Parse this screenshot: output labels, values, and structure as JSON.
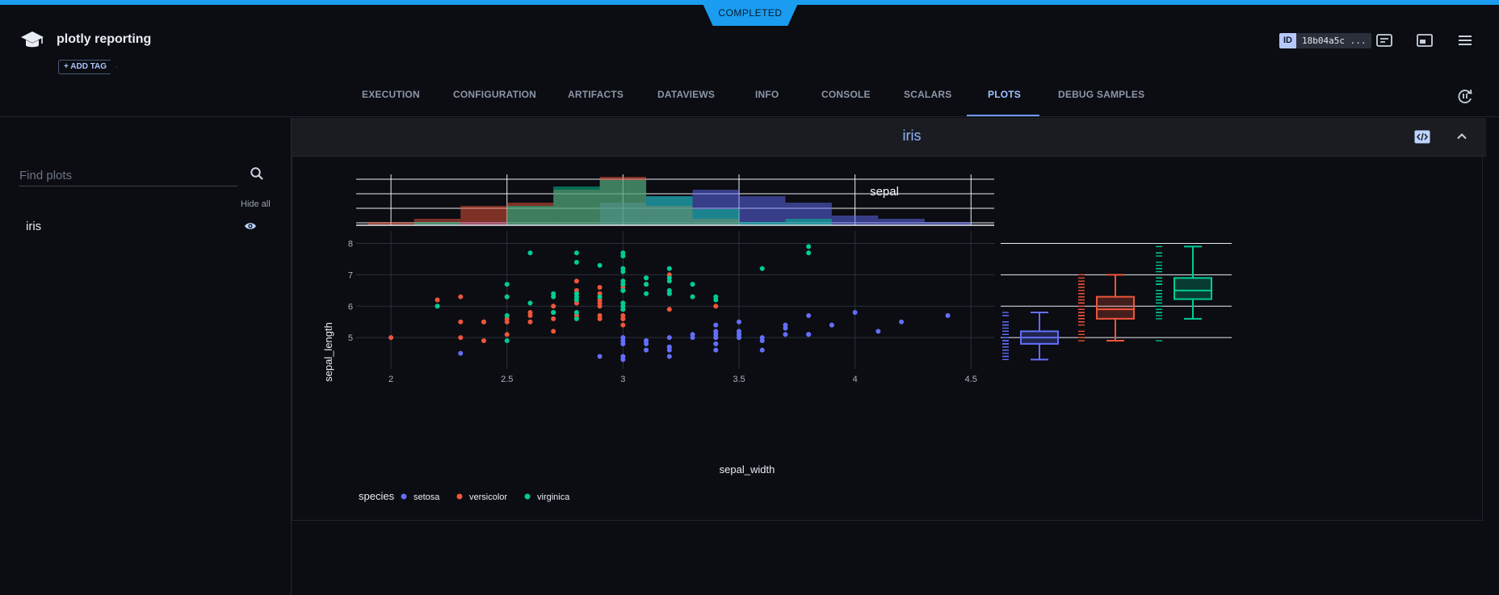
{
  "header": {
    "status": "COMPLETED",
    "task_name": "plotly reporting",
    "add_tag_label": "+ ADD TAG",
    "id_label": "ID",
    "id_value": "18b04a5c ..."
  },
  "tabs": [
    "EXECUTION",
    "CONFIGURATION",
    "ARTIFACTS",
    "DATAVIEWS",
    "INFO",
    "CONSOLE",
    "SCALARS",
    "PLOTS",
    "DEBUG SAMPLES"
  ],
  "active_tab": "PLOTS",
  "sidebar": {
    "search_placeholder": "Find plots",
    "hide_all_label": "Hide all",
    "plots": [
      {
        "label": "iris"
      }
    ]
  },
  "panel": {
    "title": "iris"
  },
  "colors": {
    "accent": "#1a9df0",
    "setosa": "#636efa",
    "versicolor": "#ef553b",
    "virginica": "#00cc96"
  },
  "chart_data": {
    "type": "scatter",
    "title": "sepal",
    "xlabel": "sepal_width",
    "ylabel": "sepal_length",
    "xlim": [
      1.85,
      4.6
    ],
    "ylim": [
      4.0,
      8.4
    ],
    "x_ticks": [
      2,
      2.5,
      3,
      3.5,
      4,
      4.5
    ],
    "y_ticks": [
      5,
      6,
      7,
      8
    ],
    "legend_title": "species",
    "legend_position": "bottom-left",
    "series": [
      {
        "name": "setosa",
        "color": "#636efa",
        "points": [
          [
            3.5,
            5.1
          ],
          [
            3.0,
            4.9
          ],
          [
            3.2,
            4.7
          ],
          [
            3.1,
            4.6
          ],
          [
            3.6,
            5.0
          ],
          [
            3.9,
            5.4
          ],
          [
            3.4,
            4.6
          ],
          [
            3.4,
            5.0
          ],
          [
            2.9,
            4.4
          ],
          [
            3.1,
            4.9
          ],
          [
            3.7,
            5.4
          ],
          [
            3.4,
            4.8
          ],
          [
            3.0,
            4.8
          ],
          [
            3.0,
            4.3
          ],
          [
            4.0,
            5.8
          ],
          [
            4.4,
            5.7
          ],
          [
            3.9,
            5.4
          ],
          [
            3.5,
            5.1
          ],
          [
            3.8,
            5.7
          ],
          [
            3.8,
            5.1
          ],
          [
            3.4,
            5.4
          ],
          [
            3.7,
            5.1
          ],
          [
            3.6,
            4.6
          ],
          [
            3.3,
            5.1
          ],
          [
            3.4,
            4.8
          ],
          [
            3.0,
            5.0
          ],
          [
            3.4,
            5.0
          ],
          [
            3.5,
            5.2
          ],
          [
            3.4,
            5.2
          ],
          [
            3.2,
            4.7
          ],
          [
            3.1,
            4.8
          ],
          [
            3.4,
            5.4
          ],
          [
            4.1,
            5.2
          ],
          [
            4.2,
            5.5
          ],
          [
            3.1,
            4.9
          ],
          [
            3.2,
            5.0
          ],
          [
            3.5,
            5.5
          ],
          [
            3.6,
            4.9
          ],
          [
            3.0,
            4.4
          ],
          [
            3.4,
            5.1
          ],
          [
            3.5,
            5.0
          ],
          [
            2.3,
            4.5
          ],
          [
            3.2,
            4.4
          ],
          [
            3.5,
            5.0
          ],
          [
            3.8,
            5.1
          ],
          [
            3.0,
            4.8
          ],
          [
            3.8,
            5.1
          ],
          [
            3.2,
            4.6
          ],
          [
            3.7,
            5.3
          ],
          [
            3.3,
            5.0
          ]
        ]
      },
      {
        "name": "versicolor",
        "color": "#ef553b",
        "points": [
          [
            3.2,
            7.0
          ],
          [
            3.2,
            6.4
          ],
          [
            3.1,
            6.9
          ],
          [
            2.3,
            5.5
          ],
          [
            2.8,
            6.5
          ],
          [
            2.8,
            5.7
          ],
          [
            3.3,
            6.3
          ],
          [
            2.4,
            4.9
          ],
          [
            2.9,
            6.6
          ],
          [
            2.7,
            5.2
          ],
          [
            2.0,
            5.0
          ],
          [
            3.0,
            5.9
          ],
          [
            2.2,
            6.0
          ],
          [
            2.9,
            6.1
          ],
          [
            2.9,
            5.6
          ],
          [
            3.1,
            6.7
          ],
          [
            3.0,
            5.6
          ],
          [
            2.7,
            5.8
          ],
          [
            2.2,
            6.2
          ],
          [
            2.5,
            5.6
          ],
          [
            3.2,
            5.9
          ],
          [
            2.8,
            6.1
          ],
          [
            2.5,
            6.3
          ],
          [
            2.8,
            6.1
          ],
          [
            2.9,
            6.4
          ],
          [
            3.0,
            6.6
          ],
          [
            2.8,
            6.8
          ],
          [
            3.0,
            6.7
          ],
          [
            2.9,
            6.0
          ],
          [
            2.6,
            5.7
          ],
          [
            2.4,
            5.5
          ],
          [
            2.4,
            5.5
          ],
          [
            2.7,
            5.8
          ],
          [
            2.7,
            6.0
          ],
          [
            3.0,
            5.4
          ],
          [
            3.4,
            6.0
          ],
          [
            3.1,
            6.7
          ],
          [
            2.3,
            6.3
          ],
          [
            3.0,
            5.6
          ],
          [
            2.5,
            5.5
          ],
          [
            2.6,
            5.5
          ],
          [
            3.0,
            6.1
          ],
          [
            2.6,
            5.8
          ],
          [
            2.3,
            5.0
          ],
          [
            2.7,
            5.6
          ],
          [
            3.0,
            5.7
          ],
          [
            2.9,
            5.7
          ],
          [
            2.9,
            6.2
          ],
          [
            2.5,
            5.1
          ],
          [
            2.8,
            5.7
          ]
        ]
      },
      {
        "name": "virginica",
        "color": "#00cc96",
        "points": [
          [
            3.3,
            6.3
          ],
          [
            2.7,
            5.8
          ],
          [
            3.0,
            7.1
          ],
          [
            2.9,
            6.3
          ],
          [
            3.0,
            6.5
          ],
          [
            3.0,
            7.6
          ],
          [
            2.5,
            4.9
          ],
          [
            2.9,
            7.3
          ],
          [
            2.5,
            6.7
          ],
          [
            3.6,
            7.2
          ],
          [
            3.2,
            6.5
          ],
          [
            2.7,
            6.4
          ],
          [
            3.0,
            6.8
          ],
          [
            2.5,
            5.7
          ],
          [
            2.8,
            5.8
          ],
          [
            3.2,
            6.4
          ],
          [
            3.0,
            6.5
          ],
          [
            3.8,
            7.7
          ],
          [
            2.6,
            7.7
          ],
          [
            2.2,
            6.0
          ],
          [
            3.2,
            6.9
          ],
          [
            2.8,
            5.6
          ],
          [
            2.8,
            7.7
          ],
          [
            2.7,
            6.3
          ],
          [
            3.3,
            6.7
          ],
          [
            3.2,
            7.2
          ],
          [
            2.8,
            6.2
          ],
          [
            3.0,
            6.1
          ],
          [
            2.8,
            6.4
          ],
          [
            3.0,
            7.2
          ],
          [
            2.8,
            7.4
          ],
          [
            3.8,
            7.9
          ],
          [
            2.8,
            6.4
          ],
          [
            2.8,
            6.3
          ],
          [
            2.6,
            6.1
          ],
          [
            3.0,
            7.7
          ],
          [
            3.4,
            6.3
          ],
          [
            3.1,
            6.4
          ],
          [
            3.0,
            6.0
          ],
          [
            3.1,
            6.9
          ],
          [
            3.1,
            6.7
          ],
          [
            3.1,
            6.9
          ],
          [
            2.7,
            5.8
          ],
          [
            3.2,
            6.8
          ],
          [
            3.3,
            6.7
          ],
          [
            3.0,
            6.7
          ],
          [
            2.5,
            6.3
          ],
          [
            3.0,
            6.5
          ],
          [
            3.4,
            6.2
          ],
          [
            3.0,
            5.9
          ]
        ]
      }
    ]
  }
}
